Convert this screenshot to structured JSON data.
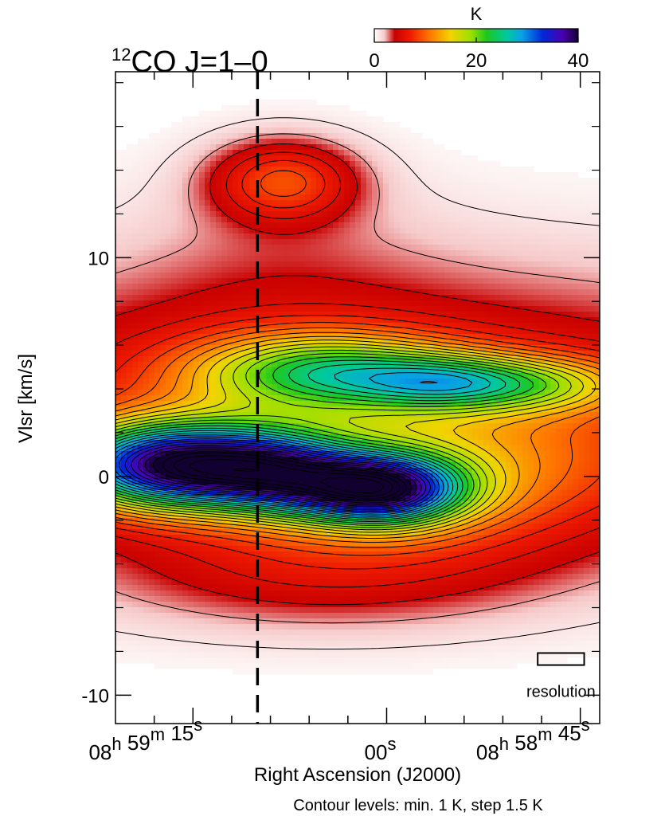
{
  "chart_data": {
    "type": "heatmap",
    "title": "12CO J=1–0",
    "title_parts": {
      "superscript": "12",
      "main": "CO J=1–0"
    },
    "colorbar": {
      "unit": "K",
      "range": [
        0,
        40
      ],
      "tick_labels": [
        "0",
        "20",
        "40"
      ],
      "tick_values": [
        0,
        20,
        40
      ],
      "stops": [
        {
          "v": 0,
          "color": "#ffffff"
        },
        {
          "v": 2,
          "color": "#f6c9c9"
        },
        {
          "v": 4,
          "color": "#c80000"
        },
        {
          "v": 7,
          "color": "#ee1a00"
        },
        {
          "v": 11,
          "color": "#ff7a00"
        },
        {
          "v": 15,
          "color": "#f1d400"
        },
        {
          "v": 19,
          "color": "#9ae000"
        },
        {
          "v": 22,
          "color": "#1ec81e"
        },
        {
          "v": 26,
          "color": "#00c8a0"
        },
        {
          "v": 29,
          "color": "#0aa0e6"
        },
        {
          "v": 33,
          "color": "#0028d8"
        },
        {
          "v": 37,
          "color": "#4a00b0"
        },
        {
          "v": 40,
          "color": "#120030"
        }
      ]
    },
    "xlabel": "Right Ascension (J2000)",
    "x_ticks": [
      {
        "ra_s": 18,
        "major": false
      },
      {
        "ra_s": 15,
        "major": true,
        "h": "08",
        "hsup": "h",
        "m": "59",
        "msup": "m",
        "s": "15",
        "ssup": "s"
      },
      {
        "ra_s": 12,
        "major": false
      },
      {
        "ra_s": 9,
        "major": false
      },
      {
        "ra_s": 6,
        "major": false
      },
      {
        "ra_s": 3,
        "major": false
      },
      {
        "ra_s": 0,
        "major": true,
        "s": "00",
        "ssup": "s"
      },
      {
        "ra_s": -3,
        "major": false
      },
      {
        "ra_s": -6,
        "major": false
      },
      {
        "ra_s": -9,
        "major": false
      },
      {
        "ra_s": -12,
        "major": false
      },
      {
        "ra_s": -15,
        "major": true,
        "h": "08",
        "hsup": "h",
        "m": "58",
        "msup": "m",
        "s": "45",
        "ssup": "s"
      }
    ],
    "xlim_ra_s": [
      21,
      -16.5
    ],
    "ylabel": "Vlsr [km/s]",
    "ylim": [
      -11.3,
      18.5
    ],
    "y_ticks": [
      {
        "v": -10,
        "label": "-10"
      },
      {
        "v": 0,
        "label": "0"
      },
      {
        "v": 10,
        "label": "10"
      }
    ],
    "y_minor_ticks": [
      -8,
      -6,
      -4,
      -2,
      2,
      4,
      6,
      8,
      12,
      14,
      16,
      18
    ],
    "vertical_marker": {
      "ra_s": 10,
      "style": "dashed"
    },
    "resolution_label": "resolution",
    "resolution_beam": {
      "ra_s_width": 3.6,
      "v_height": 0.55,
      "ra_s_center": -13.5,
      "v_center": -8.35
    },
    "contour_note": "Contour levels:  min.  1 K,  step  1.5 K",
    "contour_levels": {
      "min": 1,
      "step": 1.5
    },
    "emission_components": [
      {
        "ra_s": 16,
        "v": 0.5,
        "peak_K": 34,
        "sig_ra": 6.5,
        "sig_v": 1.35
      },
      {
        "ra_s": 0.5,
        "v": -0.6,
        "peak_K": 30,
        "sig_ra": 4.5,
        "sig_v": 1.1
      },
      {
        "ra_s": 8,
        "v": 0.0,
        "peak_K": 13,
        "sig_ra": 4,
        "sig_v": 1.2
      },
      {
        "ra_s": -2,
        "v": 0.2,
        "peak_K": 8,
        "sig_ra": 12,
        "sig_v": 2.5
      },
      {
        "ra_s": 5,
        "v": 4.8,
        "peak_K": 16,
        "sig_ra": 7,
        "sig_v": 1.2
      },
      {
        "ra_s": -5,
        "v": 4.3,
        "peak_K": 13,
        "sig_ra": 5,
        "sig_v": 0.9
      },
      {
        "ra_s": -13,
        "v": 4.2,
        "peak_K": 8,
        "sig_ra": 5,
        "sig_v": 0.9
      },
      {
        "ra_s": 2,
        "v": 3.0,
        "peak_K": 7,
        "sig_ra": 30,
        "sig_v": 4.5
      },
      {
        "ra_s": 8,
        "v": 13.5,
        "peak_K": 8,
        "sig_ra": 4,
        "sig_v": 1.3
      },
      {
        "ra_s": 8,
        "v": 10,
        "peak_K": 1.3,
        "sig_ra": 8,
        "sig_v": 3.5
      },
      {
        "ra_s": 5,
        "v": -4.5,
        "peak_K": 3.5,
        "sig_ra": 12,
        "sig_v": 1.8
      }
    ]
  }
}
